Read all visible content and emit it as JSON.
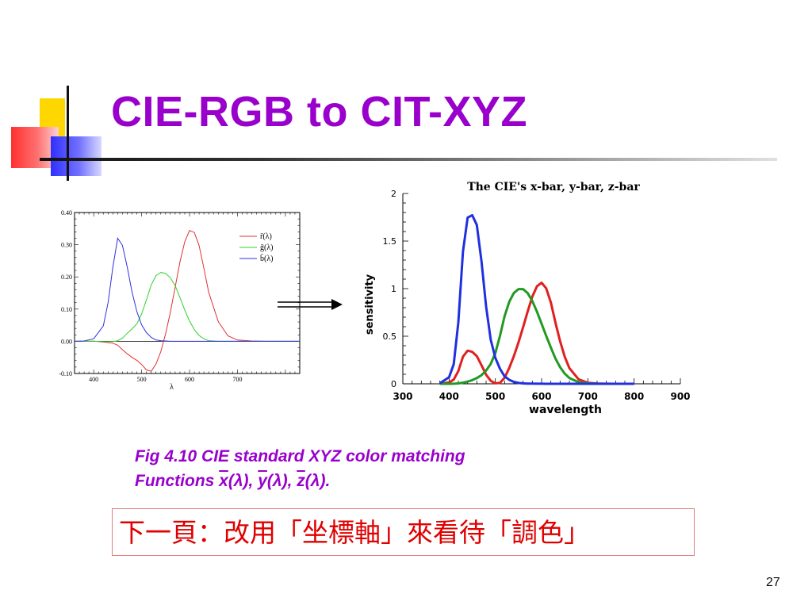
{
  "slide": {
    "title": "CIE-RGB to CIT-XYZ",
    "caption_line1": "Fig  4.10 CIE standard XYZ color matching",
    "caption_prefix": "Functions ",
    "caption_x": "x",
    "caption_y": "y",
    "caption_z": "z",
    "caption_lambda": "λ",
    "caption_sep1": "), ",
    "caption_sep2": "), ",
    "caption_end": ").",
    "caption_open": "(",
    "next_page_text": "下一頁：改用「坐標軸」來看待「調色」",
    "page_number": "27"
  },
  "chart_data": [
    {
      "type": "line",
      "title": "",
      "xlabel": "λ",
      "ylabel": "",
      "xlim": [
        360,
        830
      ],
      "ylim": [
        -0.1,
        0.4
      ],
      "xticks": [
        400,
        500,
        600,
        700
      ],
      "yticks": [
        -0.1,
        0.0,
        0.1,
        0.2,
        0.3,
        0.4
      ],
      "ytick_labels": [
        "-0.10",
        "0.00",
        "0.10",
        "0.20",
        "0.30",
        "0.40"
      ],
      "legend_position": "top-right",
      "x": [
        360,
        380,
        400,
        420,
        430,
        440,
        450,
        460,
        470,
        480,
        490,
        500,
        510,
        520,
        530,
        540,
        550,
        560,
        570,
        580,
        590,
        600,
        610,
        620,
        630,
        640,
        660,
        680,
        700,
        730,
        760,
        800,
        830
      ],
      "series": [
        {
          "name": "r̄(λ)",
          "color": "#e03030",
          "values": [
            0,
            0,
            0.0003,
            -0.002,
            -0.004,
            -0.006,
            -0.012,
            -0.026,
            -0.039,
            -0.05,
            -0.059,
            -0.072,
            -0.089,
            -0.093,
            -0.071,
            -0.032,
            0.023,
            0.091,
            0.168,
            0.246,
            0.309,
            0.344,
            0.338,
            0.297,
            0.227,
            0.152,
            0.061,
            0.017,
            0.004,
            0.001,
            0,
            0,
            0
          ]
        },
        {
          "name": "ḡ(λ)",
          "color": "#30d030",
          "values": [
            0,
            0,
            0,
            -0.001,
            -0.001,
            -0.001,
            0.002,
            0.01,
            0.025,
            0.039,
            0.054,
            0.085,
            0.128,
            0.175,
            0.204,
            0.214,
            0.211,
            0.197,
            0.173,
            0.136,
            0.097,
            0.063,
            0.036,
            0.018,
            0.008,
            0.002,
            0,
            0,
            0,
            0,
            0,
            0,
            0
          ]
        },
        {
          "name": "b̄(λ)",
          "color": "#3030e0",
          "values": [
            0,
            0.001,
            0.008,
            0.048,
            0.12,
            0.23,
            0.32,
            0.298,
            0.23,
            0.153,
            0.092,
            0.051,
            0.027,
            0.012,
            0.004,
            0.002,
            0.001,
            0,
            0,
            0,
            0,
            0,
            0,
            0,
            0,
            0,
            0,
            0,
            0,
            0,
            0,
            0,
            0
          ]
        }
      ]
    },
    {
      "type": "line",
      "title": "The CIE's x-bar, y-bar, z-bar",
      "xlabel": "wavelength",
      "ylabel": "sensitivity",
      "xlim": [
        300,
        900
      ],
      "ylim": [
        0,
        2
      ],
      "xticks": [
        300,
        400,
        500,
        600,
        700,
        800,
        900
      ],
      "yticks": [
        0,
        0.5,
        1,
        1.5,
        2
      ],
      "ytick_labels": [
        "0",
        "0.5",
        "1",
        "1.5",
        "2"
      ],
      "x": [
        380,
        400,
        410,
        420,
        430,
        440,
        450,
        460,
        470,
        480,
        490,
        500,
        510,
        520,
        530,
        540,
        550,
        560,
        570,
        580,
        590,
        600,
        610,
        620,
        630,
        640,
        650,
        660,
        680,
        700,
        720,
        740,
        760,
        780,
        800
      ],
      "series": [
        {
          "color": "#e02020",
          "values": [
            0.001,
            0.014,
            0.044,
            0.134,
            0.284,
            0.348,
            0.336,
            0.291,
            0.195,
            0.096,
            0.032,
            0.005,
            0.009,
            0.063,
            0.166,
            0.29,
            0.433,
            0.595,
            0.762,
            0.916,
            1.026,
            1.062,
            1.003,
            0.854,
            0.642,
            0.448,
            0.284,
            0.165,
            0.047,
            0.011,
            0.003,
            0.001,
            0,
            0,
            0
          ]
        },
        {
          "color": "#229922",
          "values": [
            0,
            0,
            0.001,
            0.004,
            0.012,
            0.023,
            0.038,
            0.06,
            0.091,
            0.139,
            0.208,
            0.323,
            0.503,
            0.71,
            0.862,
            0.954,
            0.995,
            0.995,
            0.952,
            0.87,
            0.757,
            0.631,
            0.503,
            0.381,
            0.265,
            0.175,
            0.107,
            0.061,
            0.017,
            0.004,
            0.001,
            0,
            0,
            0,
            0
          ]
        },
        {
          "color": "#2030e0",
          "values": [
            0.006,
            0.068,
            0.207,
            0.646,
            1.386,
            1.747,
            1.772,
            1.669,
            1.288,
            0.813,
            0.465,
            0.272,
            0.158,
            0.078,
            0.042,
            0.02,
            0.009,
            0.004,
            0.002,
            0.002,
            0.001,
            0.001,
            0,
            0,
            0,
            0,
            0,
            0,
            0,
            0,
            0,
            0,
            0,
            0,
            0
          ]
        }
      ]
    }
  ]
}
